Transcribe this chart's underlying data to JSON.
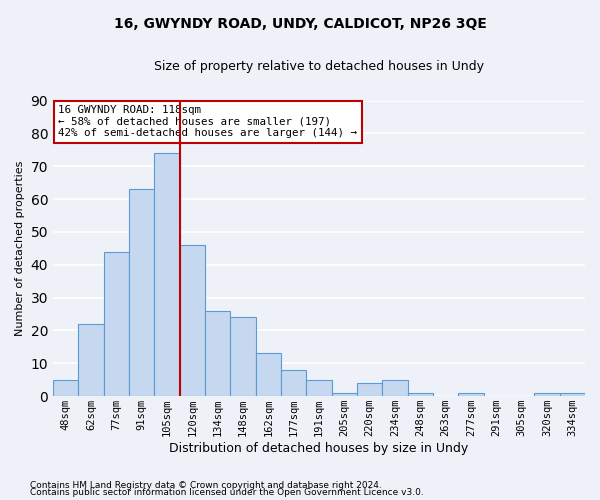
{
  "title": "16, GWYNDY ROAD, UNDY, CALDICOT, NP26 3QE",
  "subtitle": "Size of property relative to detached houses in Undy",
  "xlabel": "Distribution of detached houses by size in Undy",
  "ylabel": "Number of detached properties",
  "bar_color": "#c5d8f0",
  "bar_edge_color": "#5b9bd5",
  "background_color": "#eef2f8",
  "grid_color": "#ffffff",
  "categories": [
    "48sqm",
    "62sqm",
    "77sqm",
    "91sqm",
    "105sqm",
    "120sqm",
    "134sqm",
    "148sqm",
    "162sqm",
    "177sqm",
    "191sqm",
    "205sqm",
    "220sqm",
    "234sqm",
    "248sqm",
    "263sqm",
    "277sqm",
    "291sqm",
    "305sqm",
    "320sqm",
    "334sqm"
  ],
  "values": [
    5,
    22,
    44,
    63,
    74,
    46,
    26,
    24,
    13,
    8,
    5,
    1,
    4,
    5,
    1,
    0,
    1,
    0,
    0,
    1,
    1
  ],
  "ylim": [
    0,
    90
  ],
  "yticks": [
    0,
    10,
    20,
    30,
    40,
    50,
    60,
    70,
    80,
    90
  ],
  "vline_x": 4.5,
  "vline_color": "#c00000",
  "annotation_text": "16 GWYNDY ROAD: 118sqm\n← 58% of detached houses are smaller (197)\n42% of semi-detached houses are larger (144) →",
  "annotation_box_color": "#ffffff",
  "annotation_box_edge_color": "#c00000",
  "footer_line1": "Contains HM Land Registry data © Crown copyright and database right 2024.",
  "footer_line2": "Contains public sector information licensed under the Open Government Licence v3.0."
}
